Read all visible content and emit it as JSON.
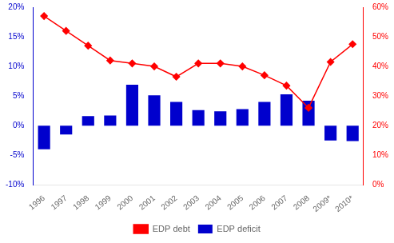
{
  "chart_data": {
    "type": "bar",
    "categories": [
      "1996",
      "1997",
      "1998",
      "1999",
      "2000",
      "2001",
      "2002",
      "2003",
      "2004",
      "2005",
      "2006",
      "2007",
      "2008",
      "2009*",
      "2010*"
    ],
    "series": [
      {
        "name": "EDP deficit",
        "type": "bar",
        "color": "#0000cd",
        "values": [
          -4.0,
          -1.5,
          1.6,
          1.7,
          6.9,
          5.1,
          4.0,
          2.6,
          2.4,
          2.8,
          4.0,
          5.3,
          4.2,
          -2.5,
          -2.6
        ]
      },
      {
        "name": "EDP debt",
        "type": "line",
        "color": "#ff0000",
        "marker": "diamond",
        "axis": "y2",
        "values": [
          57.0,
          52.0,
          47.0,
          42.0,
          41.0,
          40.0,
          36.5,
          41.0,
          41.0,
          40.0,
          37.0,
          33.5,
          26.0,
          41.5,
          47.5
        ]
      }
    ],
    "ylim": [
      -10,
      20
    ],
    "yticks": [
      {
        "value": -10,
        "label": "-10%"
      },
      {
        "value": -5,
        "label": "-5%"
      },
      {
        "value": 0,
        "label": "0%"
      },
      {
        "value": 5,
        "label": "5%"
      },
      {
        "value": 10,
        "label": "10%"
      },
      {
        "value": 15,
        "label": "15%"
      },
      {
        "value": 20,
        "label": "20%"
      }
    ],
    "y2lim": [
      0,
      60
    ],
    "y2ticks": [
      {
        "value": 0,
        "label": "0%"
      },
      {
        "value": 10,
        "label": "10%"
      },
      {
        "value": 20,
        "label": "20%"
      },
      {
        "value": 30,
        "label": "30%"
      },
      {
        "value": 40,
        "label": "40%"
      },
      {
        "value": 50,
        "label": "50%"
      },
      {
        "value": 60,
        "label": "60%"
      }
    ],
    "grid": false,
    "legend": "lower center"
  }
}
